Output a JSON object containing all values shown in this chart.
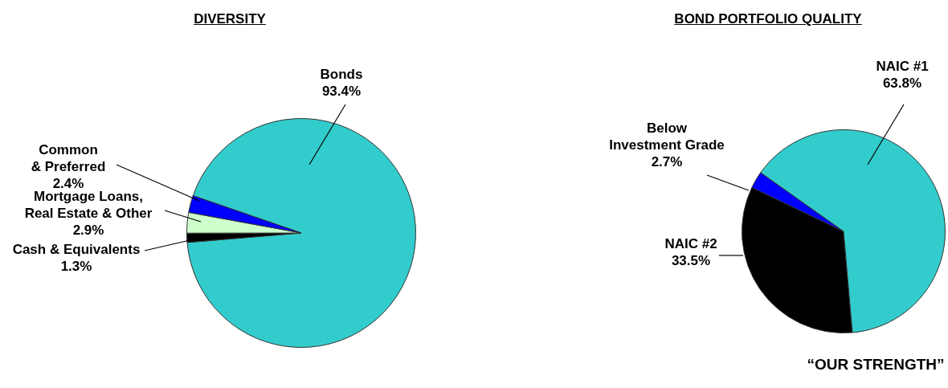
{
  "chart_data": [
    {
      "type": "pie",
      "title": "DIVERSITY",
      "categories": [
        "Bonds",
        "Cash & Equivalents",
        "Mortgage Loans, Real Estate & Other",
        "Common & Preferred"
      ],
      "values": [
        93.4,
        1.3,
        2.9,
        2.4
      ],
      "colors": [
        "#33cccc",
        "#000000",
        "#ccffcc",
        "#0000ff"
      ],
      "value_labels": [
        "93.4%",
        "1.3%",
        "2.9%",
        "2.4%"
      ]
    },
    {
      "type": "pie",
      "title": "BOND PORTFOLIO QUALITY",
      "categories": [
        "NAIC #2",
        "Below Investment Grade",
        "NAIC #1"
      ],
      "values": [
        33.5,
        2.7,
        63.8
      ],
      "colors": [
        "#000000",
        "#0000ff",
        "#33cccc"
      ],
      "value_labels": [
        "33.5%",
        "2.7%",
        "63.8%"
      ],
      "annotations": [
        "“OUR STRENGTH”"
      ]
    }
  ]
}
